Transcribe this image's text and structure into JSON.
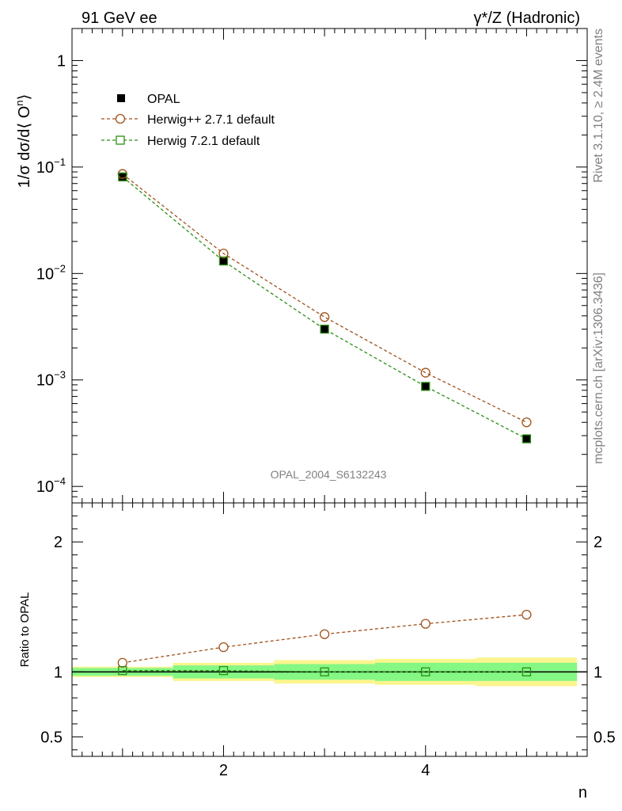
{
  "header": {
    "left": "91 GeV ee",
    "right": "γ*/Z (Hadronic)"
  },
  "side": {
    "rivet": "Rivet 3.1.10, ≥ 2.4M events",
    "mcplots": "mcplots.cern.ch [arXiv:1306.3436]"
  },
  "watermark": "OPAL_2004_S6132243",
  "colors": {
    "data": "#000000",
    "herwigpp": "#a0521a",
    "herwig7": "#2b8f14",
    "band_inner": "#85f785",
    "band_outer": "#fbf58e"
  },
  "chart_data": [
    {
      "type": "line",
      "panel": "main",
      "ylabel": "1/σ dσ/d⟨ Oⁿ⟩",
      "yscale": "log",
      "ylim": [
        7e-05,
        2.0
      ],
      "xlim": [
        0.5,
        5.6
      ],
      "yticks": [
        {
          "value": 1,
          "label": "1"
        },
        {
          "value": 0.1,
          "label": "10⁻¹"
        },
        {
          "value": 0.01,
          "label": "10⁻²"
        },
        {
          "value": 0.001,
          "label": "10⁻³"
        },
        {
          "value": 0.0001,
          "label": "10⁻⁴"
        }
      ],
      "legend_position": "top-left",
      "x": [
        1,
        2,
        3,
        4,
        5
      ],
      "series": [
        {
          "name": "OPAL",
          "marker": "filled-square",
          "values": [
            0.08,
            0.013,
            0.003,
            0.00087,
            0.00028
          ]
        },
        {
          "name": "Herwig++ 2.7.1 default",
          "marker": "open-circle",
          "values": [
            0.086,
            0.0154,
            0.0039,
            0.00117,
            0.0004
          ]
        },
        {
          "name": "Herwig 7.2.1 default",
          "marker": "open-square",
          "values": [
            0.081,
            0.0131,
            0.003,
            0.00087,
            0.00028
          ]
        }
      ]
    },
    {
      "type": "line",
      "panel": "ratio",
      "ylabel": "Ratio to OPAL",
      "xlabel": "n",
      "xlim": [
        0.5,
        5.6
      ],
      "ylim": [
        0.35,
        2.3
      ],
      "yticks": [
        {
          "value": 2,
          "label": "2"
        },
        {
          "value": 1,
          "label": "1"
        },
        {
          "value": 0.5,
          "label": "0.5"
        }
      ],
      "xticks": [
        {
          "value": 2,
          "label": "2"
        },
        {
          "value": 4,
          "label": "4"
        }
      ],
      "x": [
        1,
        2,
        3,
        4,
        5
      ],
      "band_edges": [
        0.5,
        1.5,
        2.5,
        3.5,
        4.5,
        5.5
      ],
      "band_inner": [
        0.03,
        0.05,
        0.06,
        0.07,
        0.07
      ],
      "band_outer": [
        0.04,
        0.07,
        0.09,
        0.1,
        0.11
      ],
      "series": [
        {
          "name": "Herwig++ 2.7.1 default",
          "values": [
            1.07,
            1.19,
            1.29,
            1.37,
            1.44
          ]
        },
        {
          "name": "Herwig 7.2.1 default",
          "values": [
            1.01,
            1.01,
            1.0,
            1.0,
            1.0
          ]
        }
      ]
    }
  ]
}
